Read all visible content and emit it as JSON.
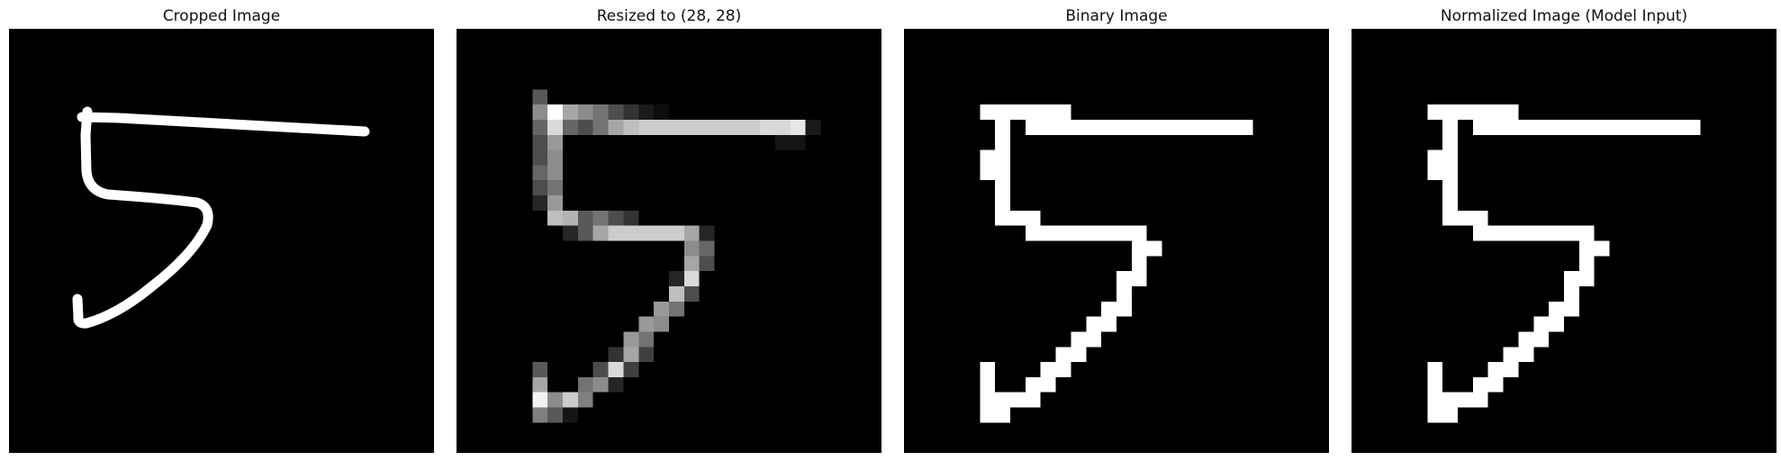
{
  "figure": {
    "background": "#000000",
    "stroke_color": "#ffffff",
    "panels": [
      {
        "title": "Cropped Image",
        "kind": "stroke"
      },
      {
        "title": "Resized to (28, 28)",
        "kind": "grayscale"
      },
      {
        "title": "Binary Image",
        "kind": "binary"
      },
      {
        "title": "Normalized Image (Model Input)",
        "kind": "binary"
      }
    ],
    "grid_size": 28,
    "grayscale_pixels": [
      [
        5,
        4,
        0.35
      ],
      [
        5,
        5,
        0.55
      ],
      [
        6,
        5,
        1.0
      ],
      [
        7,
        5,
        0.65
      ],
      [
        8,
        5,
        0.55
      ],
      [
        9,
        5,
        0.45
      ],
      [
        10,
        5,
        0.3
      ],
      [
        11,
        5,
        0.2
      ],
      [
        12,
        5,
        0.1
      ],
      [
        13,
        5,
        0.05
      ],
      [
        5,
        6,
        0.4
      ],
      [
        6,
        6,
        0.85
      ],
      [
        7,
        6,
        0.4
      ],
      [
        8,
        6,
        0.3
      ],
      [
        9,
        6,
        0.45
      ],
      [
        10,
        6,
        0.65
      ],
      [
        11,
        6,
        0.75
      ],
      [
        12,
        6,
        0.8
      ],
      [
        13,
        6,
        0.8
      ],
      [
        14,
        6,
        0.8
      ],
      [
        15,
        6,
        0.8
      ],
      [
        16,
        6,
        0.8
      ],
      [
        17,
        6,
        0.8
      ],
      [
        18,
        6,
        0.8
      ],
      [
        19,
        6,
        0.8
      ],
      [
        20,
        6,
        0.85
      ],
      [
        21,
        6,
        0.85
      ],
      [
        22,
        6,
        0.9
      ],
      [
        23,
        6,
        0.1
      ],
      [
        5,
        7,
        0.3
      ],
      [
        6,
        7,
        0.6
      ],
      [
        21,
        7,
        0.08
      ],
      [
        22,
        7,
        0.08
      ],
      [
        5,
        8,
        0.3
      ],
      [
        6,
        8,
        0.55
      ],
      [
        5,
        9,
        0.4
      ],
      [
        6,
        9,
        0.55
      ],
      [
        5,
        10,
        0.3
      ],
      [
        6,
        10,
        0.45
      ],
      [
        5,
        11,
        0.15
      ],
      [
        6,
        11,
        0.6
      ],
      [
        6,
        12,
        0.75
      ],
      [
        7,
        12,
        0.7
      ],
      [
        8,
        12,
        0.35
      ],
      [
        9,
        12,
        0.45
      ],
      [
        10,
        12,
        0.3
      ],
      [
        11,
        12,
        0.2
      ],
      [
        7,
        13,
        0.15
      ],
      [
        8,
        13,
        0.35
      ],
      [
        9,
        13,
        0.65
      ],
      [
        10,
        13,
        0.8
      ],
      [
        11,
        13,
        0.8
      ],
      [
        12,
        13,
        0.8
      ],
      [
        13,
        13,
        0.8
      ],
      [
        14,
        13,
        0.8
      ],
      [
        15,
        13,
        0.65
      ],
      [
        16,
        13,
        0.15
      ],
      [
        15,
        14,
        0.55
      ],
      [
        16,
        14,
        0.4
      ],
      [
        15,
        15,
        0.65
      ],
      [
        16,
        15,
        0.3
      ],
      [
        14,
        16,
        0.15
      ],
      [
        15,
        16,
        0.85
      ],
      [
        14,
        17,
        0.75
      ],
      [
        15,
        17,
        0.3
      ],
      [
        13,
        18,
        0.6
      ],
      [
        14,
        18,
        0.45
      ],
      [
        12,
        19,
        0.6
      ],
      [
        13,
        19,
        0.55
      ],
      [
        11,
        20,
        0.6
      ],
      [
        12,
        20,
        0.45
      ],
      [
        10,
        21,
        0.2
      ],
      [
        11,
        21,
        0.65
      ],
      [
        12,
        21,
        0.25
      ],
      [
        5,
        22,
        0.35
      ],
      [
        9,
        22,
        0.3
      ],
      [
        10,
        22,
        0.85
      ],
      [
        11,
        22,
        0.25
      ],
      [
        5,
        23,
        0.65
      ],
      [
        8,
        23,
        0.45
      ],
      [
        9,
        23,
        0.55
      ],
      [
        10,
        23,
        0.15
      ],
      [
        5,
        24,
        0.95
      ],
      [
        6,
        24,
        0.55
      ],
      [
        7,
        24,
        0.8
      ],
      [
        8,
        24,
        0.5
      ],
      [
        5,
        25,
        0.5
      ],
      [
        6,
        25,
        0.35
      ],
      [
        7,
        25,
        0.08
      ]
    ],
    "binary_pixels": [
      [
        5,
        5
      ],
      [
        6,
        5
      ],
      [
        7,
        5
      ],
      [
        8,
        5
      ],
      [
        9,
        5
      ],
      [
        10,
        5
      ],
      [
        6,
        6
      ],
      [
        8,
        6
      ],
      [
        9,
        6
      ],
      [
        10,
        6
      ],
      [
        11,
        6
      ],
      [
        12,
        6
      ],
      [
        13,
        6
      ],
      [
        14,
        6
      ],
      [
        15,
        6
      ],
      [
        16,
        6
      ],
      [
        17,
        6
      ],
      [
        18,
        6
      ],
      [
        19,
        6
      ],
      [
        20,
        6
      ],
      [
        21,
        6
      ],
      [
        22,
        6
      ],
      [
        6,
        7
      ],
      [
        5,
        8
      ],
      [
        6,
        8
      ],
      [
        5,
        9
      ],
      [
        6,
        9
      ],
      [
        6,
        10
      ],
      [
        6,
        11
      ],
      [
        6,
        12
      ],
      [
        7,
        12
      ],
      [
        8,
        12
      ],
      [
        8,
        13
      ],
      [
        9,
        13
      ],
      [
        10,
        13
      ],
      [
        11,
        13
      ],
      [
        12,
        13
      ],
      [
        13,
        13
      ],
      [
        14,
        13
      ],
      [
        15,
        13
      ],
      [
        15,
        14
      ],
      [
        16,
        14
      ],
      [
        15,
        15
      ],
      [
        14,
        16
      ],
      [
        15,
        16
      ],
      [
        14,
        17
      ],
      [
        13,
        18
      ],
      [
        14,
        18
      ],
      [
        12,
        19
      ],
      [
        13,
        19
      ],
      [
        11,
        20
      ],
      [
        12,
        20
      ],
      [
        10,
        21
      ],
      [
        11,
        21
      ],
      [
        5,
        22
      ],
      [
        9,
        22
      ],
      [
        10,
        22
      ],
      [
        5,
        23
      ],
      [
        8,
        23
      ],
      [
        9,
        23
      ],
      [
        5,
        24
      ],
      [
        6,
        24
      ],
      [
        7,
        24
      ],
      [
        8,
        24
      ],
      [
        5,
        25
      ],
      [
        6,
        25
      ]
    ]
  }
}
